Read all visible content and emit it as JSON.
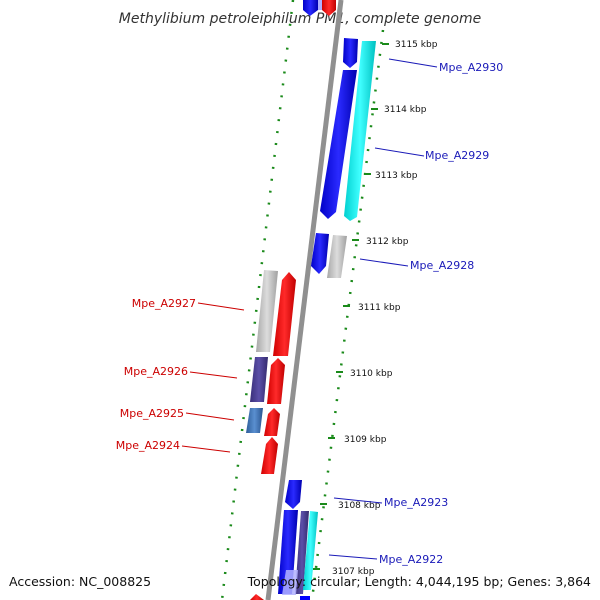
{
  "title": "Methylibium petroleiphilum PM1, complete genome",
  "accession": "Accession: NC_008825",
  "topology": "Topology: circular; Length: 4,044,195 bp; Genes: 3,864",
  "ticks": [
    "3115 kbp",
    "3114 kbp",
    "3113 kbp",
    "3112 kbp",
    "3111 kbp",
    "3110 kbp",
    "3109 kbp",
    "3108 kbp",
    "3107 kbp"
  ],
  "genes_right": [
    "Mpe_A2930",
    "Mpe_A2929",
    "Mpe_A2928",
    "Mpe_A2923",
    "Mpe_A2922"
  ],
  "genes_left": [
    "Mpe_A2927",
    "Mpe_A2926",
    "Mpe_A2925",
    "Mpe_A2924"
  ],
  "colors": {
    "forward_strand": "#ff0000",
    "reverse_strand": "#0000ff",
    "cyan_feature": "#00e5e5",
    "grey_feature": "#c0c0c0",
    "purple_feature": "#4a3d8f",
    "steel_feature": "#3a6fb0",
    "right_label": "#1a1ab8",
    "left_label": "#cc0000",
    "dotted_ring": "#1a8a1a",
    "backbone": "#888888"
  }
}
